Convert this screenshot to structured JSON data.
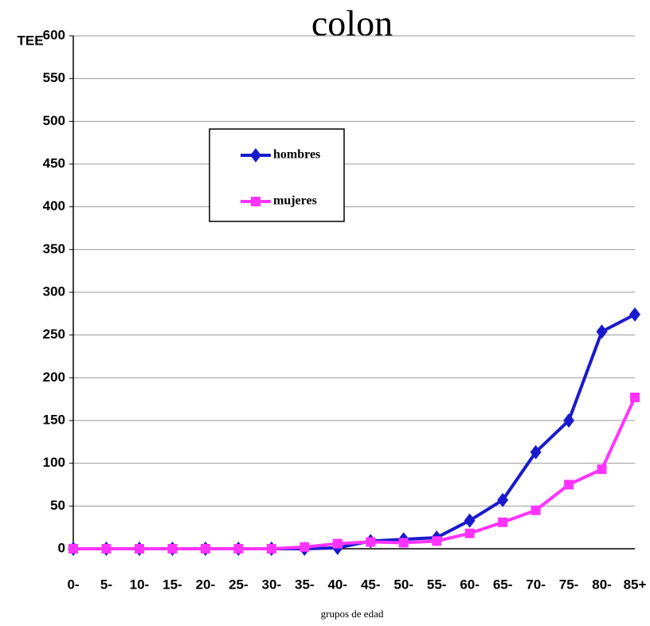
{
  "chart_data": {
    "type": "line",
    "title": "colon",
    "y_label": "TEE",
    "x_label": "grupos de edad",
    "categories": [
      "0-",
      "5-",
      "10-",
      "15-",
      "20-",
      "25-",
      "30-",
      "35-",
      "40-",
      "45-",
      "50-",
      "55-",
      "60-",
      "65-",
      "70-",
      "75-",
      "80-",
      "85+"
    ],
    "series": [
      {
        "name": "hombres",
        "color": "#1a1acc",
        "marker": "diamond",
        "values": [
          0,
          0,
          0,
          0,
          0,
          0,
          0,
          0,
          1,
          9,
          11,
          13,
          33,
          57,
          113,
          150,
          254,
          274
        ]
      },
      {
        "name": "mujeres",
        "color": "#ff33ff",
        "marker": "square",
        "values": [
          0,
          0,
          0,
          0,
          0,
          0,
          0,
          2,
          6,
          8,
          7,
          9,
          18,
          31,
          45,
          75,
          93,
          177
        ]
      }
    ],
    "ylim": [
      0,
      600
    ],
    "yticks": [
      0,
      50,
      100,
      150,
      200,
      250,
      300,
      350,
      400,
      450,
      500,
      550,
      600
    ],
    "grid": true
  }
}
